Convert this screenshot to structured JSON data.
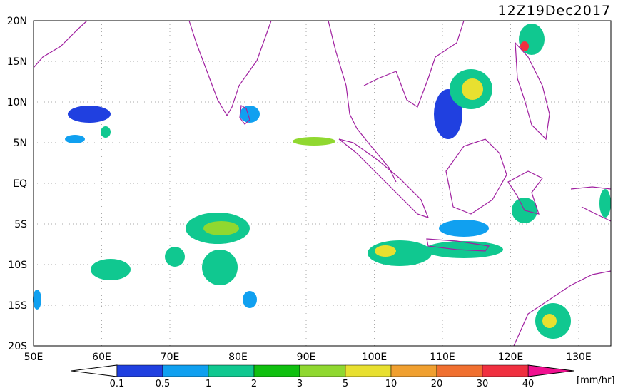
{
  "title": "12Z19Dec2017",
  "lat_labels": [
    "20N",
    "15N",
    "10N",
    "5N",
    "EQ",
    "5S",
    "10S",
    "15S",
    "20S"
  ],
  "lon_labels": [
    "50E",
    "60E",
    "70E",
    "80E",
    "90E",
    "100E",
    "110E",
    "120E",
    "130E"
  ],
  "colorbar": {
    "labels": [
      "0.1",
      "0.5",
      "1",
      "2",
      "3",
      "5",
      "10",
      "20",
      "30",
      "40"
    ],
    "unit": "[mm/hr]"
  }
}
